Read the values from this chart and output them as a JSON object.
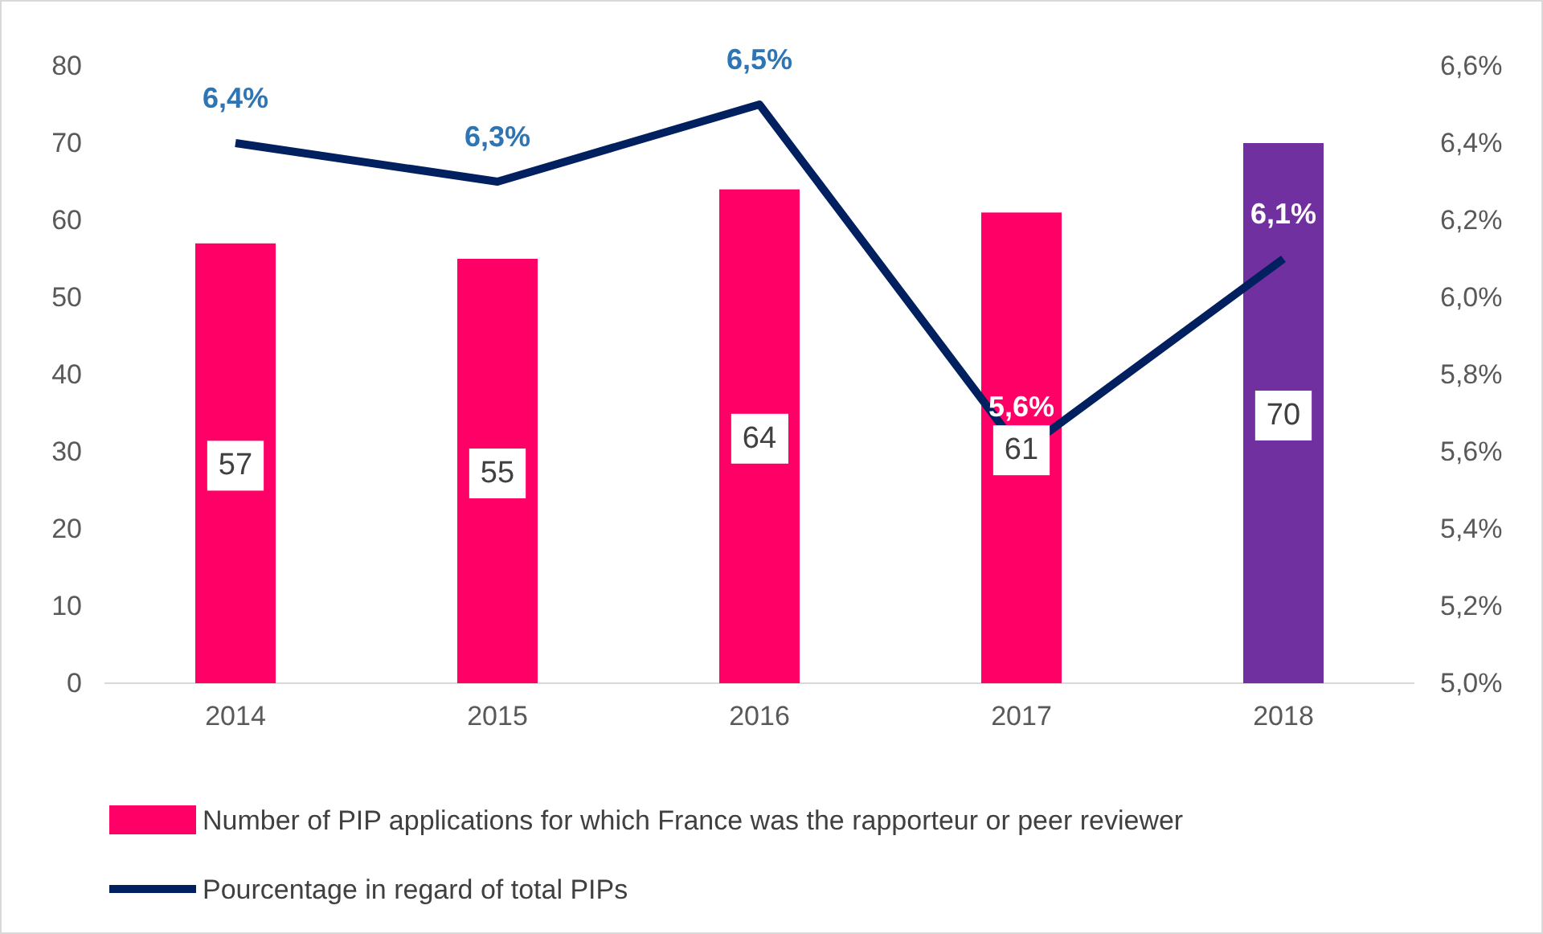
{
  "chart_data": {
    "type": "bar",
    "categories": [
      "2014",
      "2015",
      "2016",
      "2017",
      "2018"
    ],
    "series": [
      {
        "name": "Number of PIP applications for which France was the rapporteur or peer reviewer",
        "colors": [
          "#ff0066",
          "#ff0066",
          "#ff0066",
          "#ff0066",
          "#7030a0"
        ],
        "values": [
          57,
          55,
          64,
          61,
          70
        ],
        "value_labels": [
          "57",
          "55",
          "64",
          "61",
          "70"
        ]
      },
      {
        "name": "Pourcentage in regard of total PIPs",
        "type": "line",
        "axis": "y2",
        "color": "#002060",
        "values": [
          6.4,
          6.3,
          6.5,
          5.6,
          6.1
        ],
        "value_labels": [
          "6,4%",
          "6,3%",
          "6,5%",
          "5,6%",
          "6,1%"
        ]
      }
    ],
    "ylim": [
      0,
      80
    ],
    "yticks": [
      0,
      10,
      20,
      30,
      40,
      50,
      60,
      70,
      80
    ],
    "y2lim": [
      5.0,
      6.6
    ],
    "y2ticks": [
      {
        "value": 5.0,
        "label": "5,0%"
      },
      {
        "value": 5.2,
        "label": "5,2%"
      },
      {
        "value": 5.4,
        "label": "5,4%"
      },
      {
        "value": 5.6,
        "label": "5,6%"
      },
      {
        "value": 5.8,
        "label": "5,8%"
      },
      {
        "value": 6.0,
        "label": "6,0%"
      },
      {
        "value": 6.2,
        "label": "6,2%"
      },
      {
        "value": 6.4,
        "label": "6,4%"
      },
      {
        "value": 6.6,
        "label": "6,6%"
      }
    ],
    "legend": "bottom",
    "grid": false
  }
}
